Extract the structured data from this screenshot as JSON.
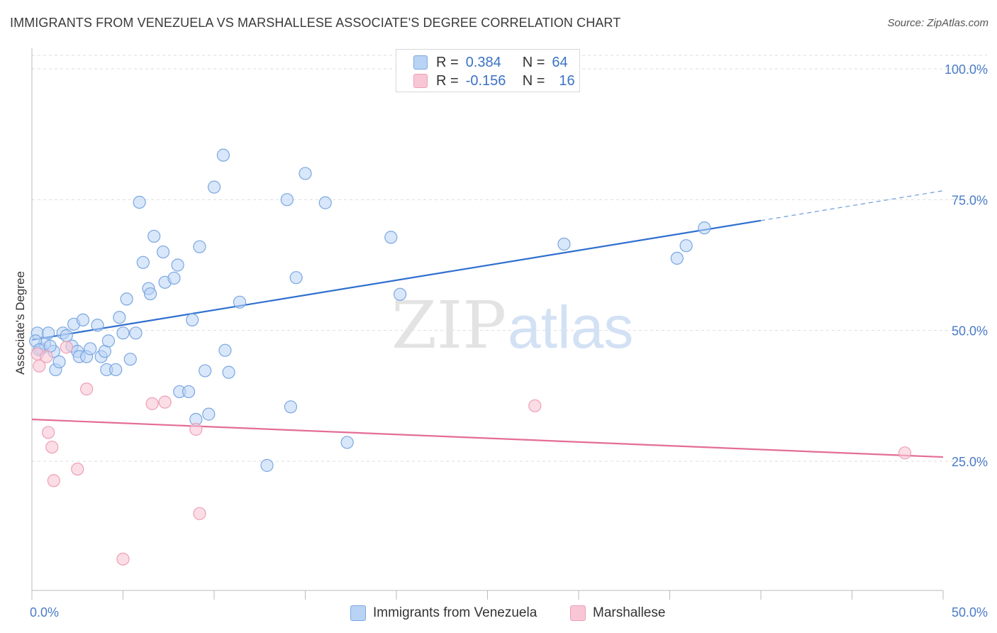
{
  "title": "IMMIGRANTS FROM VENEZUELA VS MARSHALLESE ASSOCIATE'S DEGREE CORRELATION CHART",
  "source": "Source: ZipAtlas.com",
  "watermark": {
    "zip": "ZIP",
    "atlas": "atlas"
  },
  "legend": {
    "r_label": "R =",
    "n_label": "N =",
    "series": [
      {
        "name": "Immigrants from Venezuela",
        "r": "0.384",
        "n": "64"
      },
      {
        "name": "Marshallese",
        "r": "-0.156",
        "n": "16"
      }
    ]
  },
  "chart_data": {
    "type": "scatter",
    "title": "IMMIGRANTS FROM VENEZUELA VS MARSHALLESE ASSOCIATE'S DEGREE CORRELATION CHART",
    "xlabel": "",
    "ylabel": "Associate's Degree",
    "xlim": [
      0,
      50
    ],
    "ylim": [
      0,
      105
    ],
    "x_tick_labels": [
      "0.0%",
      "50.0%"
    ],
    "y_ticks": [
      25,
      50,
      75,
      100
    ],
    "y_tick_labels": [
      "25.0%",
      "50.0%",
      "75.0%",
      "100.0%"
    ],
    "colors": {
      "blue": "#7aa7e0",
      "blue_fill": "#b9d3f5",
      "blue_line": "#2f6fcf",
      "pink": "#ee9fb6",
      "pink_fill": "#f8c6d5",
      "pink_line": "#e46d96"
    },
    "series": [
      {
        "name": "Immigrants from Venezuela",
        "trend": {
          "x0": 0,
          "y0": 48.2,
          "x1": 40,
          "y1": 71.0,
          "x_dash_end": 50,
          "y_dash_end": 76.7
        },
        "points": [
          [
            0.3,
            49.5
          ],
          [
            0.5,
            46.5
          ],
          [
            0.7,
            47.5
          ],
          [
            0.9,
            49.5
          ],
          [
            1.2,
            46
          ],
          [
            1.3,
            42.5
          ],
          [
            1.5,
            44
          ],
          [
            1.7,
            49.5
          ],
          [
            1.9,
            49
          ],
          [
            2.2,
            47
          ],
          [
            2.3,
            51.2
          ],
          [
            2.5,
            46
          ],
          [
            2.6,
            45
          ],
          [
            2.8,
            52
          ],
          [
            3.0,
            45
          ],
          [
            3.2,
            46.5
          ],
          [
            3.6,
            51
          ],
          [
            3.8,
            45
          ],
          [
            4.0,
            46
          ],
          [
            4.2,
            48
          ],
          [
            4.1,
            42.5
          ],
          [
            4.6,
            42.5
          ],
          [
            4.8,
            52.5
          ],
          [
            5.0,
            49.5
          ],
          [
            5.2,
            56
          ],
          [
            5.4,
            44.5
          ],
          [
            5.7,
            49.5
          ],
          [
            5.9,
            74.5
          ],
          [
            6.1,
            63
          ],
          [
            6.4,
            58
          ],
          [
            6.5,
            57
          ],
          [
            6.7,
            68
          ],
          [
            7.2,
            65
          ],
          [
            7.3,
            59.2
          ],
          [
            7.8,
            60
          ],
          [
            8.0,
            62.5
          ],
          [
            8.1,
            38.3
          ],
          [
            8.6,
            38.3
          ],
          [
            8.8,
            52
          ],
          [
            9.0,
            33
          ],
          [
            9.2,
            66
          ],
          [
            9.5,
            42.3
          ],
          [
            9.7,
            34
          ],
          [
            10.0,
            77.4
          ],
          [
            10.5,
            83.5
          ],
          [
            10.6,
            46.2
          ],
          [
            10.8,
            42
          ],
          [
            11.4,
            55.4
          ],
          [
            12.9,
            24.2
          ],
          [
            14.0,
            75
          ],
          [
            14.2,
            35.4
          ],
          [
            14.5,
            60.1
          ],
          [
            15.0,
            80
          ],
          [
            16.1,
            74.4
          ],
          [
            17.3,
            28.6
          ],
          [
            19.7,
            67.8
          ],
          [
            20.2,
            56.9
          ],
          [
            29.2,
            66.5
          ],
          [
            35.4,
            63.8
          ],
          [
            35.9,
            66.2
          ],
          [
            36.9,
            69.6
          ],
          [
            0.2,
            48
          ],
          [
            0.4,
            46.3
          ],
          [
            1.0,
            47
          ]
        ]
      },
      {
        "name": "Marshallese",
        "trend": {
          "x0": 0,
          "y0": 33.0,
          "x1": 50,
          "y1": 25.8
        },
        "points": [
          [
            0.3,
            45.5
          ],
          [
            0.4,
            43.2
          ],
          [
            0.8,
            45
          ],
          [
            0.9,
            30.5
          ],
          [
            1.1,
            27.7
          ],
          [
            1.2,
            21.3
          ],
          [
            1.9,
            46.8
          ],
          [
            2.5,
            23.5
          ],
          [
            3.0,
            38.8
          ],
          [
            5.0,
            6.3
          ],
          [
            6.6,
            36
          ],
          [
            7.3,
            36.3
          ],
          [
            9.0,
            31.1
          ],
          [
            9.2,
            15
          ],
          [
            27.6,
            35.6
          ],
          [
            47.9,
            26.6
          ]
        ]
      }
    ]
  }
}
